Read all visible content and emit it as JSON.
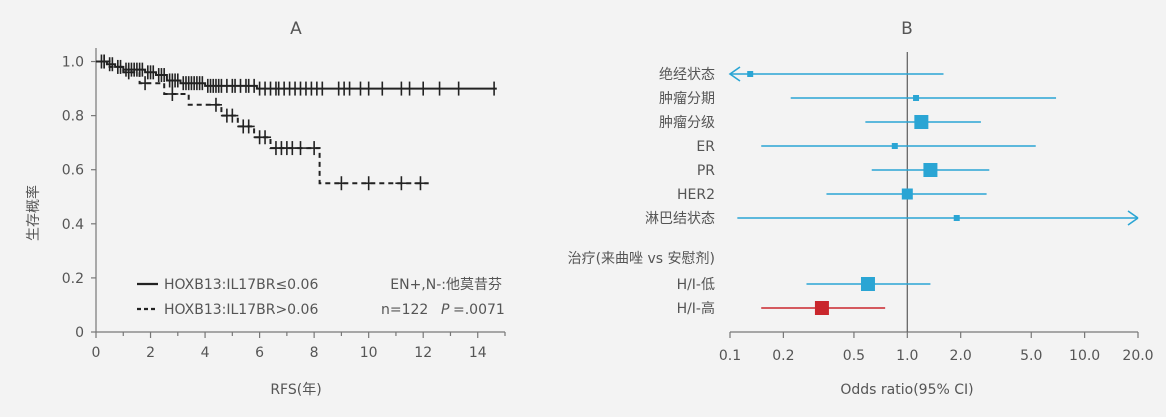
{
  "panelA": {
    "title": "A",
    "ylabel": "生存概率",
    "xlabel": "RFS(年)",
    "legend": {
      "low": "HOXB13:IL17BR≤0.06",
      "high": "HOXB13:IL17BR>0.06"
    },
    "annotation_line1": "EN+,N-:他莫昔芬",
    "annotation_n": "n=122",
    "annotation_p_label": "P",
    "annotation_p_value": "=.0071"
  },
  "panelB": {
    "title": "B",
    "xlabel": "Odds ratio(95% CI)",
    "section_label": "治疗(来曲唑 vs 安慰剂)"
  },
  "chart_data": [
    {
      "type": "line",
      "title": "A",
      "xlabel": "RFS(年)",
      "ylabel": "生存概率",
      "xlim": [
        0,
        15
      ],
      "ylim": [
        0,
        1.05
      ],
      "xticks": [
        "0",
        "2",
        "4",
        "6",
        "8",
        "10",
        "12",
        "14"
      ],
      "yticks": [
        "0",
        "0.2",
        "0.4",
        "0.6",
        "0.8",
        "1.0"
      ],
      "series": [
        {
          "name": "HOXB13:IL17BR≤0.06",
          "style": "solid",
          "steps": [
            [
              0,
              1.0
            ],
            [
              0.4,
              1.0
            ],
            [
              0.4,
              0.99
            ],
            [
              0.7,
              0.99
            ],
            [
              0.7,
              0.98
            ],
            [
              1.0,
              0.98
            ],
            [
              1.0,
              0.97
            ],
            [
              1.8,
              0.97
            ],
            [
              1.8,
              0.96
            ],
            [
              2.2,
              0.96
            ],
            [
              2.2,
              0.95
            ],
            [
              2.6,
              0.95
            ],
            [
              2.6,
              0.93
            ],
            [
              3.1,
              0.93
            ],
            [
              3.1,
              0.92
            ],
            [
              4.0,
              0.92
            ],
            [
              4.0,
              0.91
            ],
            [
              5.9,
              0.91
            ],
            [
              5.9,
              0.9
            ],
            [
              14.7,
              0.9
            ]
          ],
          "censored": [
            [
              0.2,
              1.0
            ],
            [
              0.3,
              1.0
            ],
            [
              0.5,
              0.99
            ],
            [
              0.6,
              0.99
            ],
            [
              0.8,
              0.98
            ],
            [
              0.9,
              0.98
            ],
            [
              1.1,
              0.97
            ],
            [
              1.2,
              0.97
            ],
            [
              1.3,
              0.97
            ],
            [
              1.4,
              0.97
            ],
            [
              1.5,
              0.97
            ],
            [
              1.6,
              0.97
            ],
            [
              1.7,
              0.97
            ],
            [
              1.9,
              0.96
            ],
            [
              2.0,
              0.96
            ],
            [
              2.1,
              0.96
            ],
            [
              2.3,
              0.95
            ],
            [
              2.4,
              0.95
            ],
            [
              2.5,
              0.95
            ],
            [
              2.7,
              0.93
            ],
            [
              2.8,
              0.93
            ],
            [
              2.9,
              0.93
            ],
            [
              3.0,
              0.93
            ],
            [
              3.2,
              0.92
            ],
            [
              3.3,
              0.92
            ],
            [
              3.4,
              0.92
            ],
            [
              3.5,
              0.92
            ],
            [
              3.6,
              0.92
            ],
            [
              3.7,
              0.92
            ],
            [
              3.8,
              0.92
            ],
            [
              3.9,
              0.92
            ],
            [
              4.1,
              0.91
            ],
            [
              4.2,
              0.91
            ],
            [
              4.3,
              0.91
            ],
            [
              4.4,
              0.91
            ],
            [
              4.5,
              0.91
            ],
            [
              4.6,
              0.91
            ],
            [
              4.8,
              0.91
            ],
            [
              5.0,
              0.91
            ],
            [
              5.1,
              0.91
            ],
            [
              5.3,
              0.91
            ],
            [
              5.5,
              0.91
            ],
            [
              5.6,
              0.91
            ],
            [
              5.8,
              0.91
            ],
            [
              6.0,
              0.9
            ],
            [
              6.2,
              0.9
            ],
            [
              6.4,
              0.9
            ],
            [
              6.6,
              0.9
            ],
            [
              6.7,
              0.9
            ],
            [
              6.9,
              0.9
            ],
            [
              7.1,
              0.9
            ],
            [
              7.3,
              0.9
            ],
            [
              7.5,
              0.9
            ],
            [
              7.7,
              0.9
            ],
            [
              7.9,
              0.9
            ],
            [
              8.1,
              0.9
            ],
            [
              8.3,
              0.9
            ],
            [
              8.9,
              0.9
            ],
            [
              9.1,
              0.9
            ],
            [
              9.3,
              0.9
            ],
            [
              9.7,
              0.9
            ],
            [
              10.0,
              0.9
            ],
            [
              10.5,
              0.9
            ],
            [
              11.2,
              0.9
            ],
            [
              11.5,
              0.9
            ],
            [
              12.0,
              0.9
            ],
            [
              12.6,
              0.9
            ],
            [
              13.3,
              0.9
            ],
            [
              14.6,
              0.9
            ]
          ]
        },
        {
          "name": "HOXB13:IL17BR>0.06",
          "style": "dashed",
          "steps": [
            [
              0,
              1.0
            ],
            [
              0.5,
              1.0
            ],
            [
              0.5,
              0.98
            ],
            [
              1.0,
              0.98
            ],
            [
              1.0,
              0.96
            ],
            [
              1.6,
              0.96
            ],
            [
              1.6,
              0.92
            ],
            [
              2.5,
              0.92
            ],
            [
              2.5,
              0.88
            ],
            [
              3.4,
              0.88
            ],
            [
              3.4,
              0.84
            ],
            [
              4.6,
              0.84
            ],
            [
              4.6,
              0.8
            ],
            [
              5.2,
              0.8
            ],
            [
              5.2,
              0.76
            ],
            [
              5.8,
              0.76
            ],
            [
              5.8,
              0.72
            ],
            [
              6.4,
              0.72
            ],
            [
              6.4,
              0.68
            ],
            [
              8.2,
              0.68
            ],
            [
              8.2,
              0.55
            ],
            [
              12.2,
              0.55
            ]
          ],
          "censored": [
            [
              0.3,
              1.0
            ],
            [
              1.2,
              0.96
            ],
            [
              1.8,
              0.92
            ],
            [
              2.8,
              0.88
            ],
            [
              4.4,
              0.84
            ],
            [
              4.8,
              0.8
            ],
            [
              5.0,
              0.8
            ],
            [
              5.4,
              0.76
            ],
            [
              5.6,
              0.76
            ],
            [
              6.0,
              0.72
            ],
            [
              6.2,
              0.72
            ],
            [
              6.6,
              0.68
            ],
            [
              6.8,
              0.68
            ],
            [
              7.0,
              0.68
            ],
            [
              7.2,
              0.68
            ],
            [
              7.5,
              0.68
            ],
            [
              8.0,
              0.68
            ],
            [
              9.0,
              0.55
            ],
            [
              10.0,
              0.55
            ],
            [
              11.2,
              0.55
            ],
            [
              11.9,
              0.55
            ]
          ]
        }
      ]
    },
    {
      "type": "scatter",
      "subtype": "forest",
      "title": "B",
      "xlabel": "Odds ratio(95% CI)",
      "xscale": "log",
      "xlim": [
        0.1,
        20.0
      ],
      "xticks": [
        "0.1",
        "0.2",
        "0.5",
        "1.0",
        "2.0",
        "5.0",
        "10.0",
        "20.0"
      ],
      "reference_line": 1.0,
      "rows": [
        {
          "label": "绝经状态",
          "or": 0.13,
          "lo": 0.1,
          "hi": 1.6,
          "color": "#2aa5d4",
          "arrow_left": true,
          "arrow_right": false,
          "box": "small"
        },
        {
          "label": "肿瘤分期",
          "or": 1.12,
          "lo": 0.22,
          "hi": 6.9,
          "color": "#2aa5d4",
          "arrow_left": false,
          "arrow_right": false,
          "box": "small"
        },
        {
          "label": "肿瘤分级",
          "or": 1.2,
          "lo": 0.58,
          "hi": 2.6,
          "color": "#2aa5d4",
          "arrow_left": false,
          "arrow_right": false,
          "box": "large"
        },
        {
          "label": "ER",
          "or": 0.85,
          "lo": 0.15,
          "hi": 5.3,
          "color": "#2aa5d4",
          "arrow_left": false,
          "arrow_right": false,
          "box": "small"
        },
        {
          "label": "PR",
          "or": 1.35,
          "lo": 0.63,
          "hi": 2.9,
          "color": "#2aa5d4",
          "arrow_left": false,
          "arrow_right": false,
          "box": "large"
        },
        {
          "label": "HER2",
          "or": 1.0,
          "lo": 0.35,
          "hi": 2.8,
          "color": "#2aa5d4",
          "arrow_left": false,
          "arrow_right": false,
          "box": "medium"
        },
        {
          "label": "淋巴结状态",
          "or": 1.9,
          "lo": 0.11,
          "hi": 20.0,
          "color": "#2aa5d4",
          "arrow_left": false,
          "arrow_right": true,
          "box": "small"
        },
        {
          "label": "H/I-低",
          "or": 0.6,
          "lo": 0.27,
          "hi": 1.35,
          "color": "#2aa5d4",
          "arrow_left": false,
          "arrow_right": false,
          "box": "large"
        },
        {
          "label": "H/I-高",
          "or": 0.33,
          "lo": 0.15,
          "hi": 0.75,
          "color": "#c9262c",
          "arrow_left": false,
          "arrow_right": false,
          "box": "large"
        }
      ]
    }
  ]
}
